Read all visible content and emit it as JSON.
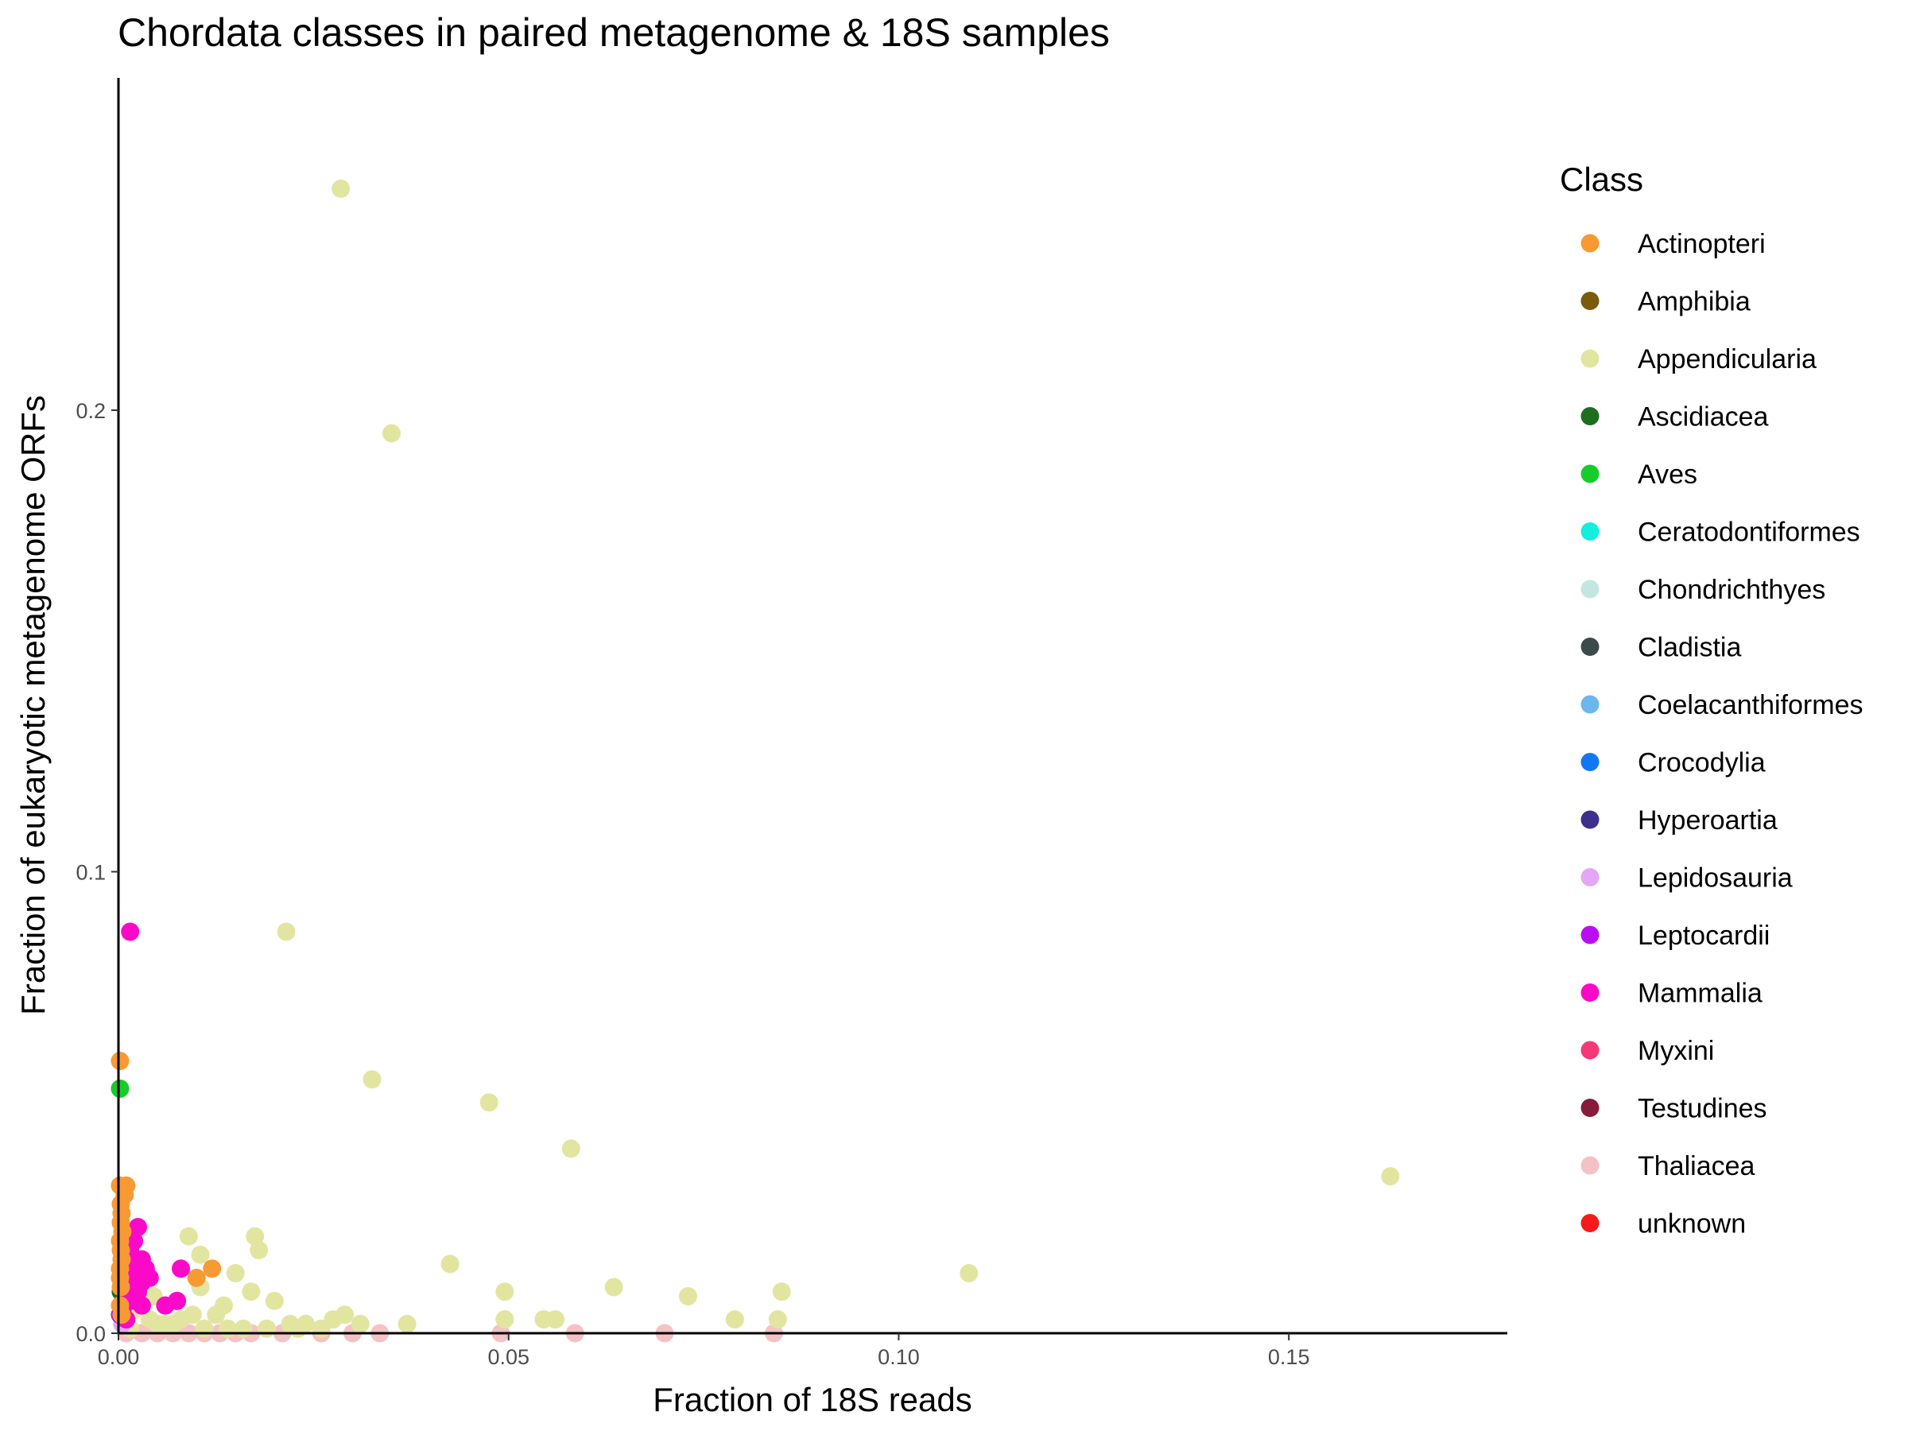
{
  "chart_data": {
    "type": "scatter",
    "title": "Chordata classes in paired metagenome & 18S samples",
    "xlabel": "Fraction of 18S reads",
    "ylabel": "Fraction of eukaryotic metagenome ORFs",
    "xlim": [
      0,
      0.178
    ],
    "ylim": [
      0,
      0.272
    ],
    "x_ticks": [
      {
        "value": 0.0,
        "label": "0.00"
      },
      {
        "value": 0.05,
        "label": "0.05"
      },
      {
        "value": 0.1,
        "label": "0.10"
      },
      {
        "value": 0.15,
        "label": "0.15"
      }
    ],
    "y_ticks": [
      {
        "value": 0.0,
        "label": "0.0"
      },
      {
        "value": 0.1,
        "label": "0.1"
      },
      {
        "value": 0.2,
        "label": "0.2"
      }
    ],
    "grid": false,
    "legend": {
      "title": "Class",
      "position": "right",
      "entries": [
        {
          "label": "Actinopteri",
          "color": "#F89A34"
        },
        {
          "label": "Amphibia",
          "color": "#7B5A0B"
        },
        {
          "label": "Appendicularia",
          "color": "#E2E5A0"
        },
        {
          "label": "Ascidiacea",
          "color": "#1F6E1E"
        },
        {
          "label": "Aves",
          "color": "#16CC2A"
        },
        {
          "label": "Ceratodontiformes",
          "color": "#12EFDF"
        },
        {
          "label": "Chondrichthyes",
          "color": "#C3E6E2"
        },
        {
          "label": "Cladistia",
          "color": "#3B4B4A"
        },
        {
          "label": "Coelacanthiformes",
          "color": "#6BB7EE"
        },
        {
          "label": "Crocodylia",
          "color": "#1178F4"
        },
        {
          "label": "Hyperoartia",
          "color": "#3C2F8E"
        },
        {
          "label": "Lepidosauria",
          "color": "#E3A7F5"
        },
        {
          "label": "Leptocardii",
          "color": "#B90EF2"
        },
        {
          "label": "Mammalia",
          "color": "#FB09C9"
        },
        {
          "label": "Myxini",
          "color": "#F33977"
        },
        {
          "label": "Testudines",
          "color": "#861C3A"
        },
        {
          "label": "Thaliacea",
          "color": "#F4C2C5"
        },
        {
          "label": "unknown",
          "color": "#F71A1A"
        }
      ]
    },
    "series": [
      {
        "name": "Appendicularia",
        "points": [
          [
            0.0285,
            0.248
          ],
          [
            0.035,
            0.195
          ],
          [
            0.0215,
            0.087
          ],
          [
            0.0325,
            0.055
          ],
          [
            0.0475,
            0.05
          ],
          [
            0.058,
            0.04
          ],
          [
            0.163,
            0.034
          ],
          [
            0.109,
            0.013
          ],
          [
            0.0425,
            0.015
          ],
          [
            0.0495,
            0.009
          ],
          [
            0.0635,
            0.01
          ],
          [
            0.073,
            0.008
          ],
          [
            0.085,
            0.009
          ],
          [
            0.079,
            0.003
          ],
          [
            0.0845,
            0.003
          ],
          [
            0.056,
            0.003
          ],
          [
            0.0545,
            0.003
          ],
          [
            0.0495,
            0.003
          ],
          [
            0.037,
            0.002
          ],
          [
            0.031,
            0.002
          ],
          [
            0.029,
            0.004
          ],
          [
            0.0275,
            0.003
          ],
          [
            0.024,
            0.002
          ],
          [
            0.022,
            0.002
          ],
          [
            0.02,
            0.007
          ],
          [
            0.0175,
            0.021
          ],
          [
            0.018,
            0.018
          ],
          [
            0.017,
            0.009
          ],
          [
            0.015,
            0.013
          ],
          [
            0.0135,
            0.006
          ],
          [
            0.0125,
            0.004
          ],
          [
            0.0105,
            0.017
          ],
          [
            0.009,
            0.021
          ],
          [
            0.0105,
            0.01
          ],
          [
            0.0095,
            0.004
          ],
          [
            0.008,
            0.003
          ],
          [
            0.007,
            0.002
          ],
          [
            0.006,
            0.002
          ],
          [
            0.005,
            0.002
          ],
          [
            0.004,
            0.003
          ],
          [
            0.003,
            0.009
          ],
          [
            0.0045,
            0.008
          ],
          [
            0.002,
            0.005
          ],
          [
            0.001,
            0.004
          ],
          [
            0.0005,
            0.002
          ],
          [
            0.0015,
            0.001
          ],
          [
            0.011,
            0.001
          ],
          [
            0.014,
            0.001
          ],
          [
            0.016,
            0.001
          ],
          [
            0.019,
            0.001
          ],
          [
            0.023,
            0.001
          ],
          [
            0.026,
            0.001
          ]
        ]
      },
      {
        "name": "Actinopteri",
        "points": [
          [
            0.0002,
            0.059
          ],
          [
            0.0002,
            0.032
          ],
          [
            0.001,
            0.032
          ],
          [
            0.0008,
            0.03
          ],
          [
            0.0003,
            0.028
          ],
          [
            0.0004,
            0.026
          ],
          [
            0.0003,
            0.024
          ],
          [
            0.0005,
            0.022
          ],
          [
            0.0002,
            0.02
          ],
          [
            0.0003,
            0.018
          ],
          [
            0.0004,
            0.016
          ],
          [
            0.0002,
            0.014
          ],
          [
            0.0002,
            0.012
          ],
          [
            0.0003,
            0.01
          ],
          [
            0.012,
            0.014
          ],
          [
            0.01,
            0.012
          ],
          [
            0.0002,
            0.006
          ],
          [
            0.0004,
            0.004
          ]
        ]
      },
      {
        "name": "Mammalia",
        "points": [
          [
            0.0015,
            0.087
          ],
          [
            0.0025,
            0.023
          ],
          [
            0.002,
            0.02
          ],
          [
            0.0015,
            0.018
          ],
          [
            0.001,
            0.016
          ],
          [
            0.003,
            0.016
          ],
          [
            0.002,
            0.014
          ],
          [
            0.0035,
            0.014
          ],
          [
            0.004,
            0.012
          ],
          [
            0.003,
            0.011
          ],
          [
            0.0015,
            0.012
          ],
          [
            0.001,
            0.01
          ],
          [
            0.0025,
            0.009
          ],
          [
            0.008,
            0.014
          ],
          [
            0.0075,
            0.007
          ],
          [
            0.006,
            0.006
          ],
          [
            0.003,
            0.006
          ],
          [
            0.0015,
            0.007
          ],
          [
            0.0005,
            0.005
          ],
          [
            0.001,
            0.003
          ]
        ]
      },
      {
        "name": "Aves",
        "points": [
          [
            0.0002,
            0.053
          ]
        ]
      },
      {
        "name": "Ascidiacea",
        "points": [
          [
            0.0003,
            0.009
          ],
          [
            0.0003,
            0.006
          ]
        ]
      },
      {
        "name": "Leptocardii",
        "points": [
          [
            0.0002,
            0.004
          ]
        ]
      },
      {
        "name": "Lepidosauria",
        "points": [
          [
            0.0005,
            0.002
          ]
        ]
      },
      {
        "name": "Thaliacea",
        "points": [
          [
            0.001,
            0.0
          ],
          [
            0.003,
            0.0
          ],
          [
            0.005,
            0.0
          ],
          [
            0.007,
            0.0
          ],
          [
            0.009,
            0.0
          ],
          [
            0.011,
            0.0
          ],
          [
            0.013,
            0.0
          ],
          [
            0.015,
            0.0
          ],
          [
            0.017,
            0.0
          ],
          [
            0.021,
            0.0
          ],
          [
            0.026,
            0.0
          ],
          [
            0.03,
            0.0
          ],
          [
            0.0335,
            0.0
          ],
          [
            0.049,
            0.0
          ],
          [
            0.0585,
            0.0
          ],
          [
            0.07,
            0.0
          ],
          [
            0.084,
            0.0
          ]
        ]
      }
    ]
  }
}
